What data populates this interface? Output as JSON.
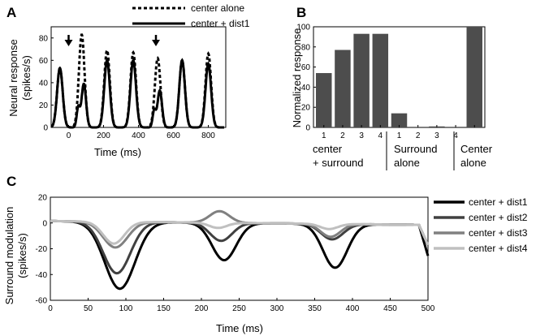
{
  "chart_data": [
    {
      "panel": "A",
      "type": "line",
      "xlabel": "Time (ms)",
      "ylabel": "Neural response",
      "ylabel2": "(spikes/s)",
      "xlim": [
        -100,
        900
      ],
      "ylim": [
        0,
        90
      ],
      "xticks": [
        0,
        200,
        400,
        600,
        800
      ],
      "yticks": [
        0,
        20,
        40,
        60,
        80
      ],
      "arrows_at_ms": [
        0,
        500
      ],
      "legend": [
        "center alone",
        "center + dist1"
      ],
      "peaks": {
        "x": [
          -50,
          75,
          220,
          370,
          510,
          650,
          800
        ],
        "center_alone": [
          53,
          83,
          69,
          67,
          62,
          60,
          66
        ],
        "center_dist1": [
          53,
          39,
          60,
          60,
          33,
          60,
          57
        ]
      }
    },
    {
      "panel": "B",
      "type": "bar",
      "ylabel": "Normalized response",
      "ylim": [
        0,
        100
      ],
      "yticks": [
        0,
        20,
        40,
        60,
        80,
        100
      ],
      "categories": [
        "1",
        "2",
        "3",
        "4",
        "1",
        "2",
        "3",
        "4",
        ""
      ],
      "values": [
        54,
        77,
        93,
        93,
        14,
        0,
        1,
        0,
        100
      ],
      "groups": [
        {
          "line1": "center",
          "line2": "+ surround"
        },
        {
          "line1": "Surround",
          "line2": "alone"
        },
        {
          "line1": "Center",
          "line2": "alone"
        }
      ]
    },
    {
      "panel": "C",
      "type": "line",
      "xlabel": "Time (ms)",
      "ylabel": "Surround modulation",
      "ylabel2": "(spikes/s)",
      "xlim": [
        0,
        500
      ],
      "ylim": [
        -60,
        20
      ],
      "xticks": [
        0,
        50,
        100,
        150,
        200,
        250,
        300,
        350,
        400,
        450,
        500
      ],
      "yticks": [
        -60,
        -40,
        -20,
        0,
        20
      ],
      "series": [
        {
          "name": "center + dist1",
          "color": "#000000",
          "troughs": [
            -52,
            -29,
            -34
          ]
        },
        {
          "name": "center + dist2",
          "color": "#404040",
          "troughs": [
            -40,
            -14,
            -12
          ]
        },
        {
          "name": "center + dist3",
          "color": "#808080",
          "troughs": [
            -20,
            9,
            -10
          ]
        },
        {
          "name": "center + dist4",
          "color": "#c0c0c0",
          "troughs": [
            -17,
            -4,
            -4
          ]
        }
      ]
    }
  ]
}
